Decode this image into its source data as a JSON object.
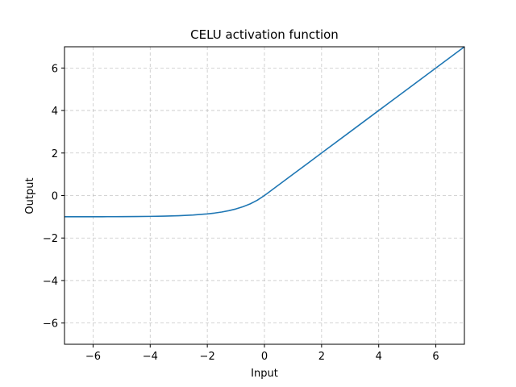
{
  "chart_data": {
    "type": "line",
    "title": "CELU activation function",
    "xlabel": "Input",
    "ylabel": "Output",
    "xlim": [
      -7,
      7
    ],
    "ylim": [
      -7,
      7
    ],
    "xticks": [
      -6,
      -4,
      -2,
      0,
      2,
      4,
      6
    ],
    "yticks": [
      -6,
      -4,
      -2,
      0,
      2,
      4,
      6
    ],
    "xtick_labels": [
      "−6",
      "−4",
      "−2",
      "0",
      "2",
      "4",
      "6"
    ],
    "ytick_labels": [
      "−6",
      "−4",
      "−2",
      "0",
      "2",
      "4",
      "6"
    ],
    "grid": true,
    "line_color": "#1f77b4",
    "series": [
      {
        "x": [
          -7,
          -6.5,
          -6,
          -5.5,
          -5,
          -4.5,
          -4,
          -3.5,
          -3,
          -2.5,
          -2,
          -1.75,
          -1.5,
          -1.25,
          -1,
          -0.75,
          -0.5,
          -0.25,
          0,
          1,
          2,
          3,
          4,
          5,
          6,
          7
        ],
        "values": [
          -0.999,
          -0.998,
          -0.998,
          -0.996,
          -0.993,
          -0.989,
          -0.982,
          -0.97,
          -0.95,
          -0.918,
          -0.865,
          -0.826,
          -0.777,
          -0.713,
          -0.632,
          -0.528,
          -0.393,
          -0.221,
          0,
          1,
          2,
          3,
          4,
          5,
          6,
          7
        ]
      }
    ]
  }
}
